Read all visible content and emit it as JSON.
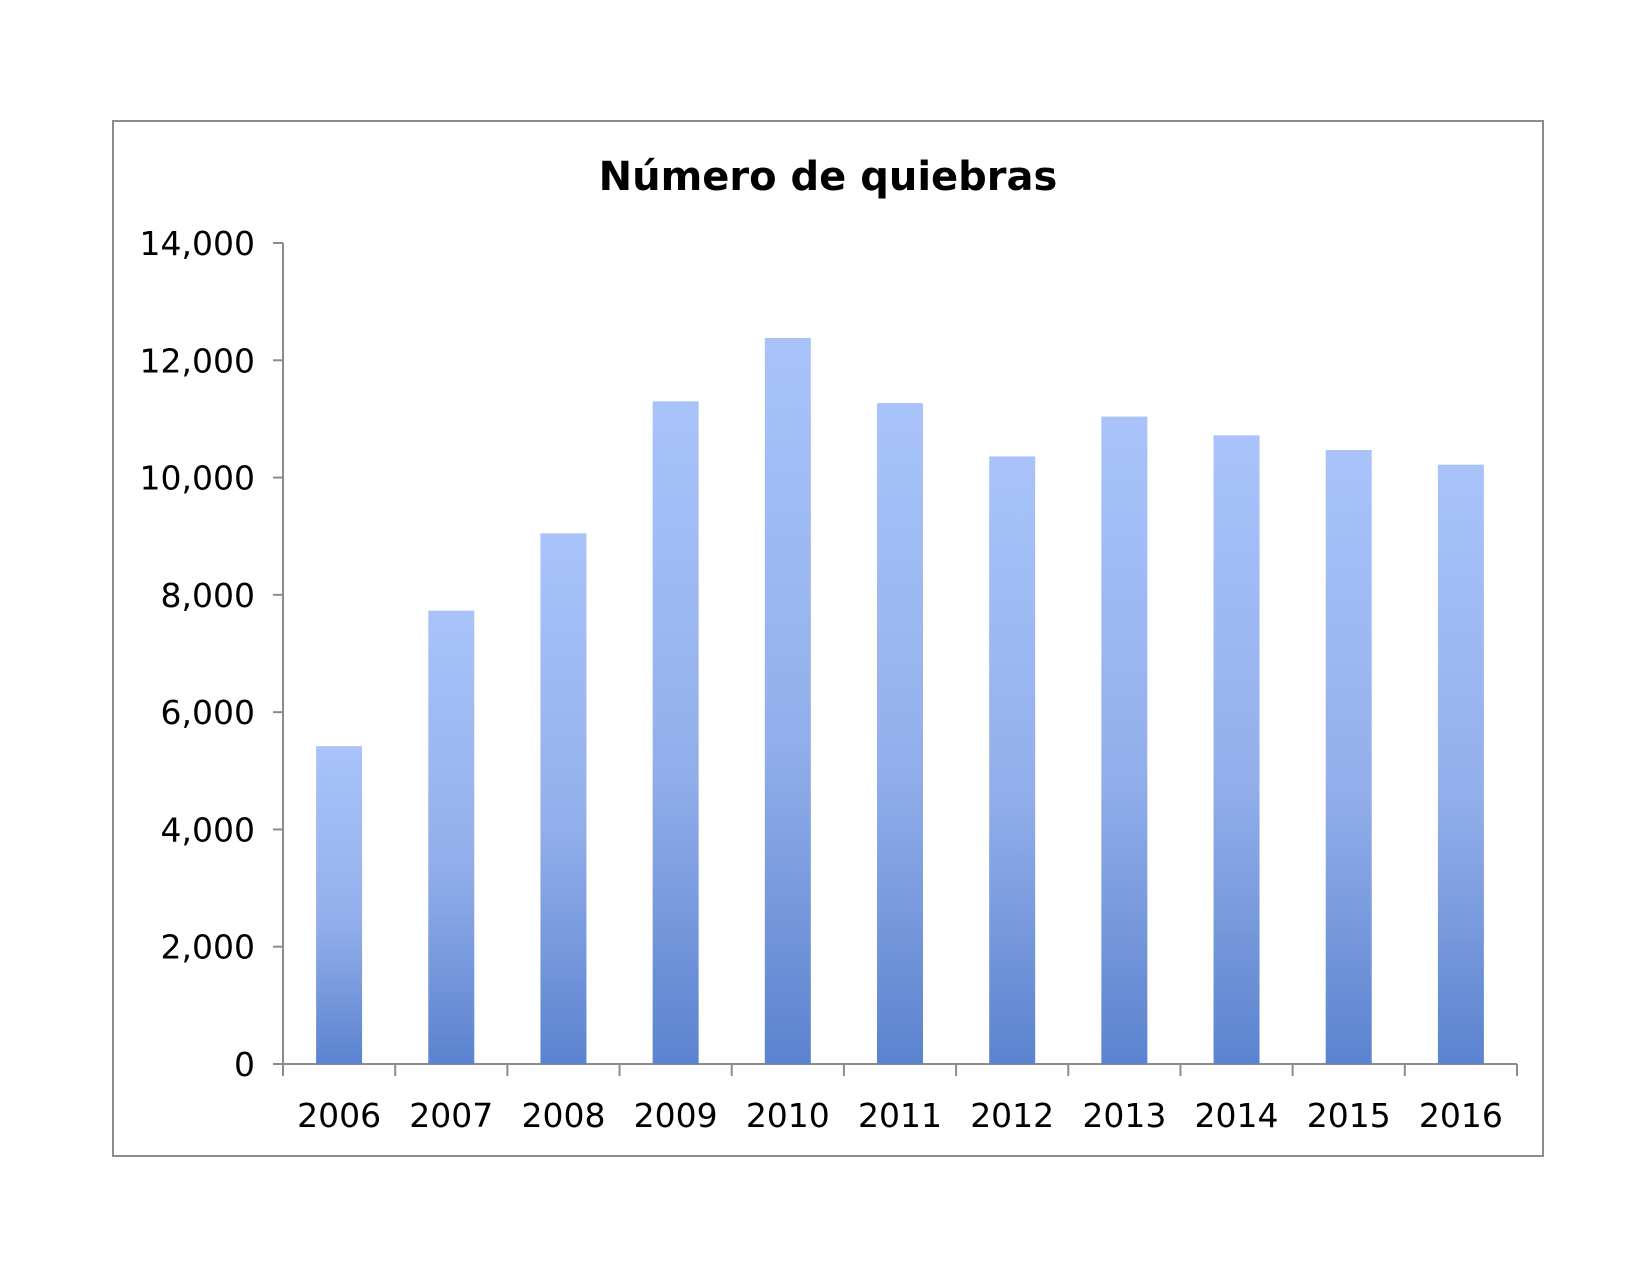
{
  "chart_data": {
    "type": "bar",
    "title": "Número de quiebras",
    "categories": [
      "2006",
      "2007",
      "2008",
      "2009",
      "2010",
      "2011",
      "2012",
      "2013",
      "2014",
      "2015",
      "2016"
    ],
    "values": [
      5420,
      7730,
      9050,
      11300,
      12380,
      11270,
      10360,
      11040,
      10720,
      10470,
      10220
    ],
    "xlabel": "",
    "ylabel": "",
    "ylim": [
      0,
      14000
    ],
    "yticks": [
      0,
      2000,
      4000,
      6000,
      8000,
      10000,
      12000,
      14000
    ],
    "ytick_labels": [
      "0",
      "2,000",
      "4,000",
      "6,000",
      "8,000",
      "10,000",
      "12,000",
      "14,000"
    ],
    "grid": false,
    "legend": "none",
    "colors": {
      "bar_top": "#A9C3FA",
      "bar_bottom": "#5B83CF",
      "axis": "#8C8C8C",
      "frame": "#8C8C8C"
    }
  }
}
